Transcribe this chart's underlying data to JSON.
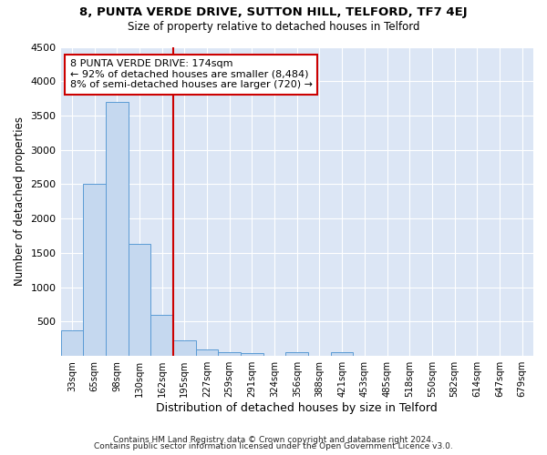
{
  "title": "8, PUNTA VERDE DRIVE, SUTTON HILL, TELFORD, TF7 4EJ",
  "subtitle": "Size of property relative to detached houses in Telford",
  "xlabel": "Distribution of detached houses by size in Telford",
  "ylabel": "Number of detached properties",
  "bar_labels": [
    "33sqm",
    "65sqm",
    "98sqm",
    "130sqm",
    "162sqm",
    "195sqm",
    "227sqm",
    "259sqm",
    "291sqm",
    "324sqm",
    "356sqm",
    "388sqm",
    "421sqm",
    "453sqm",
    "485sqm",
    "518sqm",
    "550sqm",
    "582sqm",
    "614sqm",
    "647sqm",
    "679sqm"
  ],
  "bar_values": [
    370,
    2500,
    3700,
    1630,
    600,
    230,
    100,
    60,
    40,
    0,
    55,
    0,
    55,
    0,
    0,
    0,
    0,
    0,
    0,
    0,
    0
  ],
  "property_bin_index": 4,
  "annotation_text": "8 PUNTA VERDE DRIVE: 174sqm\n← 92% of detached houses are smaller (8,484)\n8% of semi-detached houses are larger (720) →",
  "bar_color": "#c5d8ef",
  "bar_edge_color": "#5b9bd5",
  "line_color": "#cc0000",
  "annotation_box_color": "#cc0000",
  "bg_color": "#dce6f5",
  "footer_line1": "Contains HM Land Registry data © Crown copyright and database right 2024.",
  "footer_line2": "Contains public sector information licensed under the Open Government Licence v3.0.",
  "ylim": [
    0,
    4500
  ],
  "yticks": [
    0,
    500,
    1000,
    1500,
    2000,
    2500,
    3000,
    3500,
    4000,
    4500
  ]
}
